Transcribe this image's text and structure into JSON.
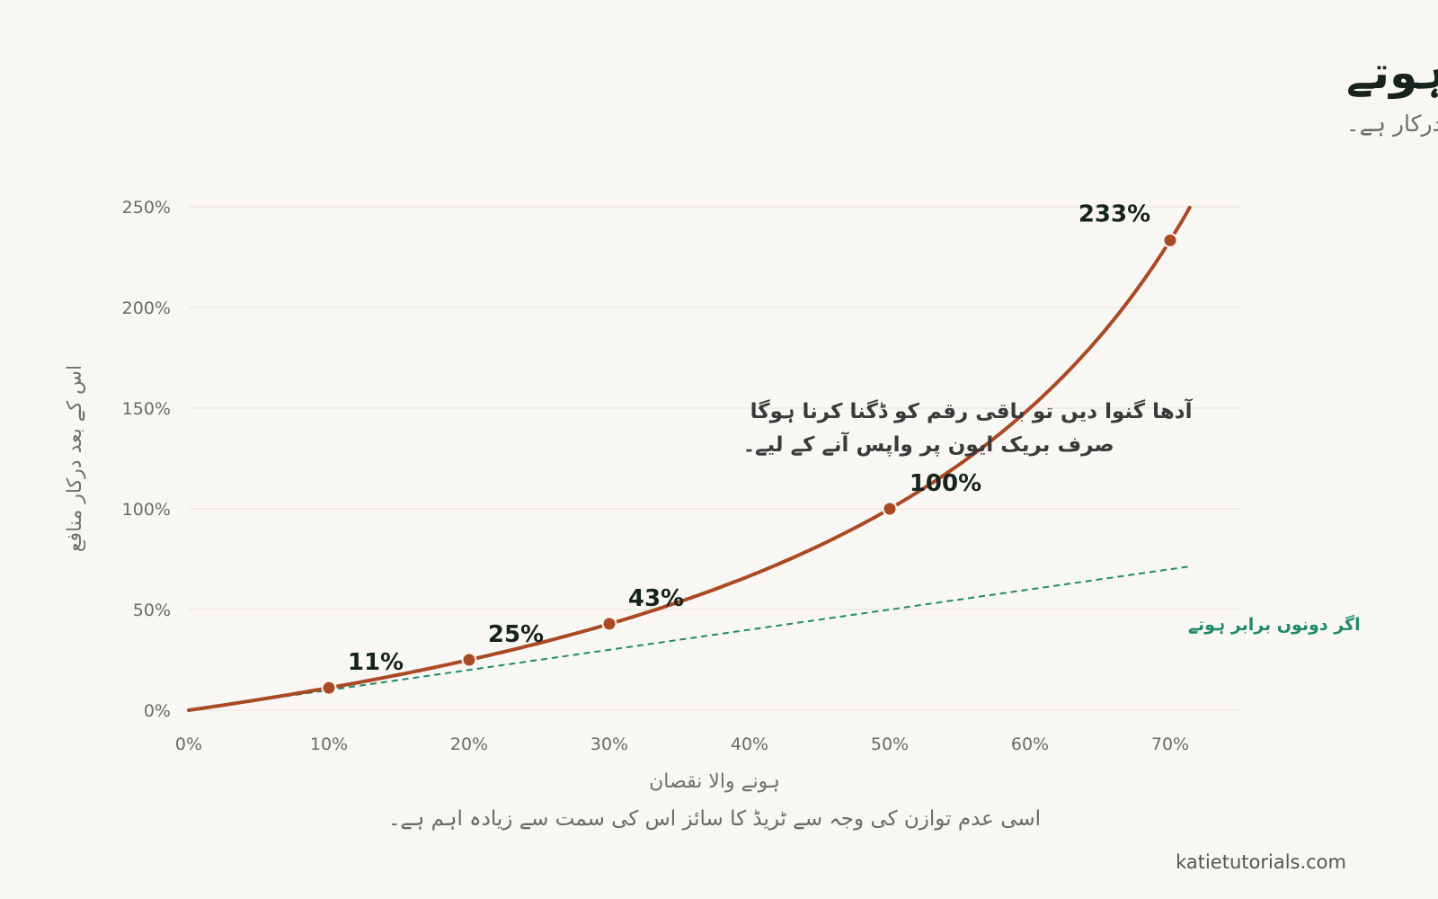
{
  "chart_data": {
    "type": "line",
    "title": "نقصان اور واپسی برابر نہیں ہوتے",
    "subtitle": "نقصان کے بعد صرف شروع کی جگہ پر لوٹنے کے لیے جتنا منافع درکار ہے۔",
    "xlabel": "ہونے والا نقصان",
    "ylabel": "اس کے بعد درکار منافع",
    "xlim": [
      0,
      72
    ],
    "ylim": [
      0,
      250
    ],
    "x_ticks": [
      "0%",
      "10%",
      "20%",
      "30%",
      "40%",
      "50%",
      "60%",
      "70%"
    ],
    "x_tick_values": [
      0,
      10,
      20,
      30,
      40,
      50,
      60,
      70
    ],
    "y_ticks": [
      "0%",
      "50%",
      "100%",
      "150%",
      "200%",
      "250%"
    ],
    "y_tick_values": [
      0,
      50,
      100,
      150,
      200,
      250
    ],
    "grid": "horizontal",
    "series": [
      {
        "kind": "curve",
        "color": "#a94a24",
        "x": [
          0,
          5,
          10,
          15,
          20,
          25,
          30,
          35,
          40,
          45,
          50,
          55,
          60,
          65,
          70,
          71.4
        ],
        "y": [
          0,
          5.3,
          11.1,
          17.6,
          25,
          33.3,
          42.9,
          53.8,
          66.7,
          81.8,
          100,
          122.2,
          150,
          185.7,
          233.3,
          250
        ]
      },
      {
        "kind": "reference",
        "name": "اگر دونوں برابر ہوتے",
        "color": "#1f8a6a",
        "style": "dashed",
        "x": [
          0,
          71.4
        ],
        "y": [
          0,
          71.4
        ]
      }
    ],
    "highlight_points": [
      {
        "x": 10,
        "y": 11.1,
        "label": "11%"
      },
      {
        "x": 20,
        "y": 25,
        "label": "25%"
      },
      {
        "x": 30,
        "y": 42.9,
        "label": "43%"
      },
      {
        "x": 50,
        "y": 100,
        "label": "100%"
      },
      {
        "x": 70,
        "y": 233.3,
        "label": "233%"
      }
    ],
    "annotation": {
      "lines": [
        "آدھا گنوا دیں تو باقی رقم کو ڈگنا کرنا ہوگا",
        "صرف بریک ایون پر واپس آنے کے لیے۔"
      ],
      "x": 23.5,
      "y": 145
    }
  },
  "footnote": "اسی عدم توازن کی وجہ سے ٹریڈ کا سائز اس کی سمت سے زیادہ اہم ہے۔",
  "source": "katietutorials.com"
}
